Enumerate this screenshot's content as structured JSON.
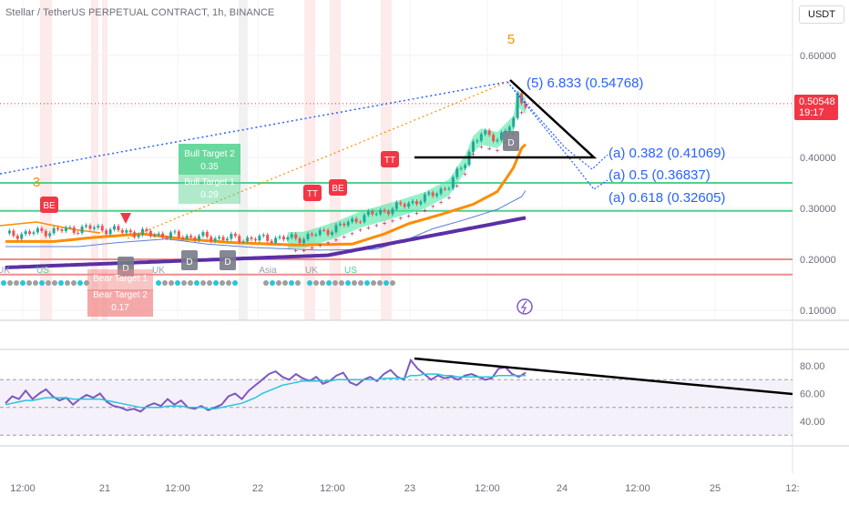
{
  "header": {
    "title": "Stellar / TetherUS PERPETUAL CONTRACT, 1h, BINANCE",
    "currency": "USDT",
    "last_price": "0.50548",
    "countdown": "19:17"
  },
  "chart_data": [
    {
      "type": "candlestick",
      "pane": "price",
      "y_ticks": [
        "0.60000",
        "0.50000",
        "0.40000",
        "0.30000",
        "0.20000",
        "0.10000"
      ],
      "ylim": [
        0.095,
        0.675
      ],
      "x_ticks": [
        "12:00",
        "21",
        "12:00",
        "22",
        "12:00",
        "23",
        "12:00",
        "24",
        "12:00",
        "25",
        "12:"
      ],
      "elliott_labels": [
        "3",
        "5"
      ],
      "signal_badges": [
        "BE",
        "TT",
        "BE",
        "TT"
      ],
      "marker_letters": [
        "D",
        "D",
        "D",
        "D"
      ],
      "session_labels": [
        "UK",
        "US",
        "UK",
        "Asia",
        "UK",
        "US"
      ],
      "targets": [
        {
          "label": "Bull Target 2",
          "value": "0.35"
        },
        {
          "label": "Bull Target 1",
          "value": "0.29"
        },
        {
          "label": "Bear Target 1",
          "value": ""
        },
        {
          "label": "Bear Target 2",
          "value": "0.17"
        }
      ],
      "fib_annotations": [
        {
          "label": "(5) 6.833 (0.54768)",
          "price": 0.54768
        },
        {
          "label": "(a) 0.382 (0.41069)",
          "price": 0.41069
        },
        {
          "label": "(a) 0.5 (0.36837)",
          "price": 0.36837
        },
        {
          "label": "(a) 0.618 (0.32605)",
          "price": 0.32605
        }
      ],
      "horizontal_levels": [
        {
          "price": 0.35,
          "color": "#4fd18b"
        },
        {
          "price": 0.295,
          "color": "#4fd18b"
        },
        {
          "price": 0.2,
          "color": "#f28b8b"
        },
        {
          "price": 0.17,
          "color": "#f28b8b"
        }
      ],
      "colors": {
        "up": "#26a69a",
        "down": "#ef5350",
        "ema_orange": "#ff8c00",
        "ema_purple": "#5b2fa6",
        "ema_blue": "#5b7fd6",
        "fib_blue": "#2962ff",
        "cloud": "#3ee69a"
      }
    },
    {
      "type": "line",
      "pane": "rsi",
      "y_ticks": [
        "80.00",
        "60.00",
        "40.00"
      ],
      "ylim": [
        20,
        92
      ],
      "bands": [
        70,
        50,
        30
      ],
      "series": [
        {
          "color": "#7e57c2",
          "values": [
            53,
            58,
            56,
            62,
            56,
            60,
            63,
            58,
            55,
            57,
            52,
            56,
            59,
            57,
            60,
            54,
            51,
            50,
            48,
            49,
            47,
            51,
            53,
            51,
            56,
            52,
            55,
            50,
            49,
            51,
            48,
            50,
            52,
            58,
            60,
            56,
            62,
            66,
            70,
            74,
            76,
            72,
            70,
            74,
            71,
            69,
            72,
            67,
            69,
            73,
            75,
            68,
            66,
            70,
            72,
            69,
            74,
            77,
            72,
            70,
            84,
            78,
            74,
            70,
            73,
            71,
            72,
            70,
            73,
            74,
            72,
            70,
            71,
            78,
            79,
            74,
            72,
            75
          ]
        },
        {
          "color": "#26c6da",
          "values": [
            52,
            53,
            54,
            55,
            55,
            56,
            57,
            57,
            57,
            57,
            56,
            56,
            56,
            56,
            56,
            55,
            54,
            53,
            52,
            51,
            50,
            50,
            50,
            50,
            51,
            51,
            51,
            50,
            50,
            50,
            49,
            49,
            50,
            51,
            52,
            53,
            55,
            57,
            60,
            62,
            64,
            66,
            67,
            68,
            69,
            69,
            69,
            69,
            69,
            70,
            70,
            70,
            70,
            70,
            70,
            70,
            71,
            71,
            71,
            71,
            73,
            73,
            74,
            74,
            74,
            73,
            73,
            72,
            72,
            72,
            72,
            72,
            72,
            73,
            73,
            73,
            73,
            73
          ]
        }
      ]
    }
  ]
}
